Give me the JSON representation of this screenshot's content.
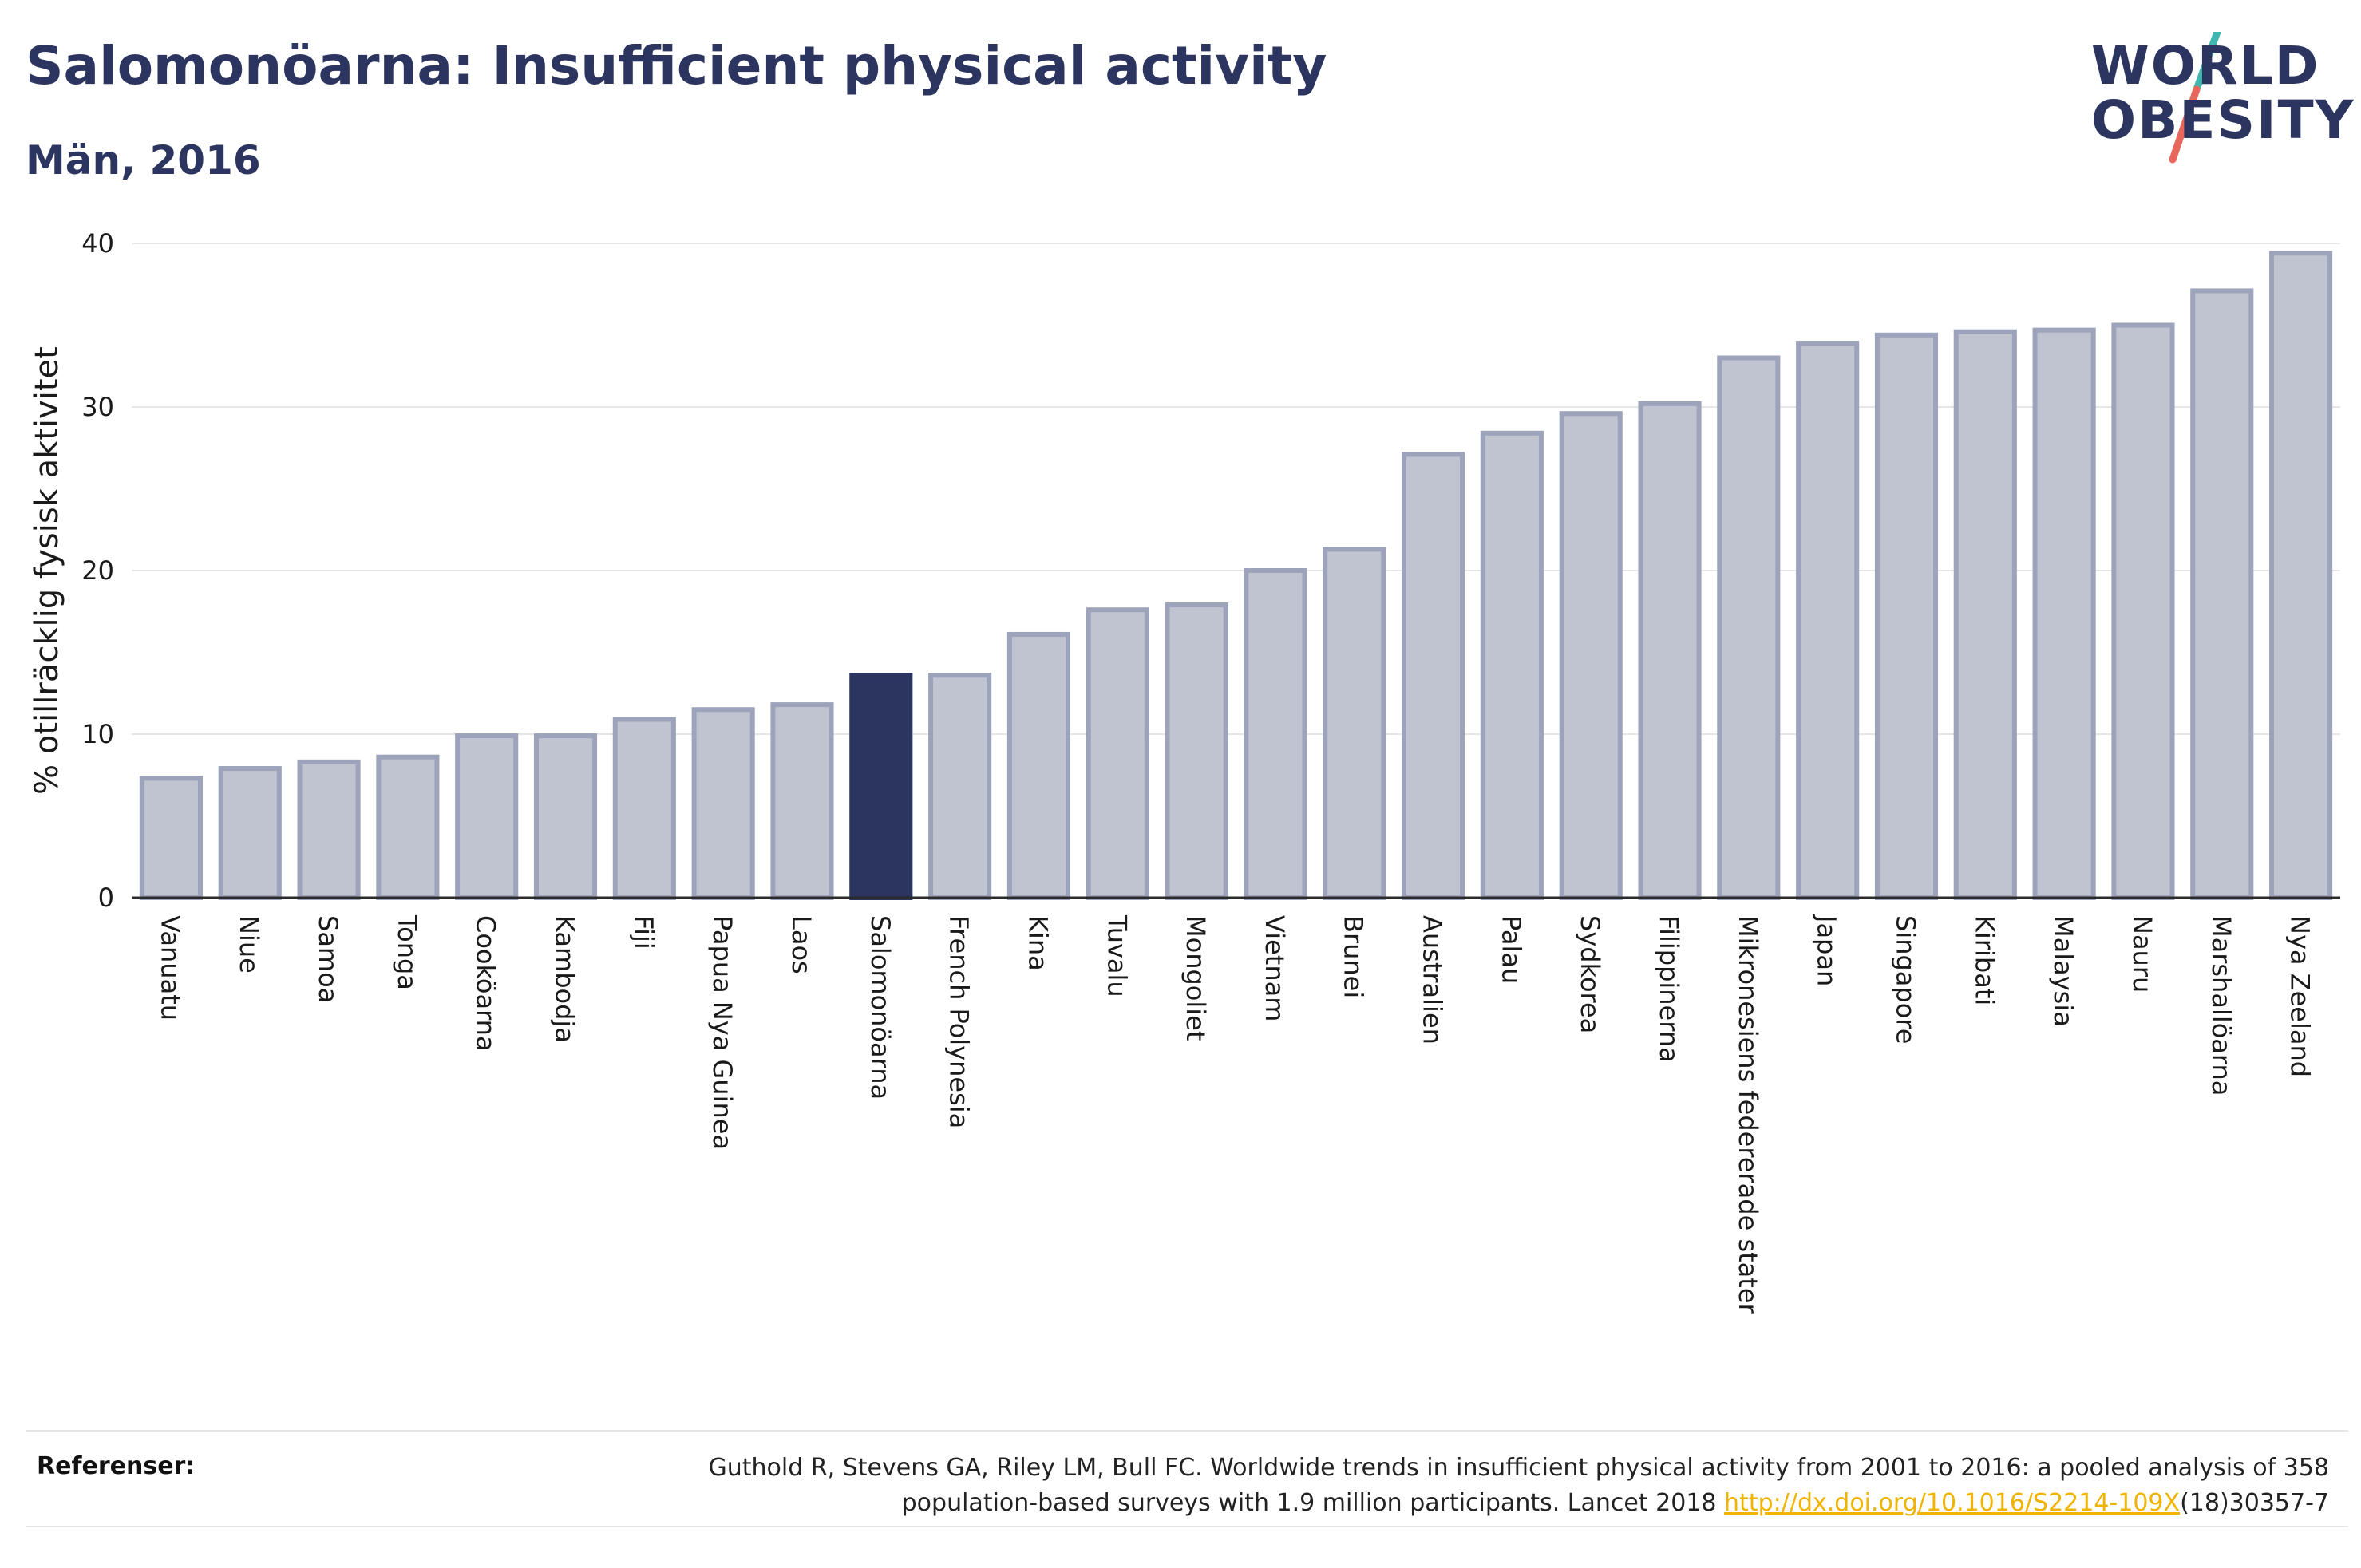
{
  "header": {
    "title": "Salomonöarna: Insufficient physical activity",
    "subtitle": "Män, 2016"
  },
  "logo": {
    "line1": "WORLD",
    "line2": "OBESITY",
    "slash_colors": [
      "#3fb7b0",
      "#e8665a"
    ]
  },
  "colors": {
    "highlight_bar": "#2b3560",
    "other_bar": "#c0c4d0",
    "other_bar_border": "#9ca3bb",
    "title": "#2b3560",
    "link": "#f0b400"
  },
  "chart_data": {
    "type": "bar",
    "ylabel": "% otillräcklig fysisk aktivitet",
    "ylim": [
      0,
      40
    ],
    "yticks": [
      0,
      10,
      20,
      30,
      40
    ],
    "grid": true,
    "highlight": "Salomonöarna",
    "categories": [
      "Vanuatu",
      "Niue",
      "Samoa",
      "Tonga",
      "Cooköarna",
      "Kambodja",
      "Fiji",
      "Papua Nya Guinea",
      "Laos",
      "Salomonöarna",
      "French Polynesia",
      "Kina",
      "Tuvalu",
      "Mongoliet",
      "Vietnam",
      "Brunei",
      "Australien",
      "Palau",
      "Sydkorea",
      "Filippinerna",
      "Mikronesiens federerade stater",
      "Japan",
      "Singapore",
      "Kiribati",
      "Malaysia",
      "Nauru",
      "Marshallöarna",
      "Nya Zeeland"
    ],
    "values": [
      7.3,
      7.9,
      8.3,
      8.6,
      9.9,
      9.9,
      10.9,
      11.5,
      11.8,
      13.6,
      13.6,
      16.1,
      17.6,
      17.9,
      20.0,
      21.3,
      27.1,
      28.4,
      29.6,
      30.2,
      33.0,
      33.9,
      34.4,
      34.6,
      34.7,
      35.0,
      37.1,
      39.4
    ]
  },
  "references": {
    "label": "Referenser:",
    "text_line1": "Guthold R, Stevens GA, Riley LM, Bull FC. Worldwide trends in insufficient physical activity from 2001 to 2016: a pooled analysis of 358",
    "text_line2_start": "population-based surveys with 1.9 million participants. Lancet 2018 ",
    "link_text": "http://dx.doi.org/10.1016/S2214-109X",
    "text_line2_end": "(18)30357-7"
  }
}
